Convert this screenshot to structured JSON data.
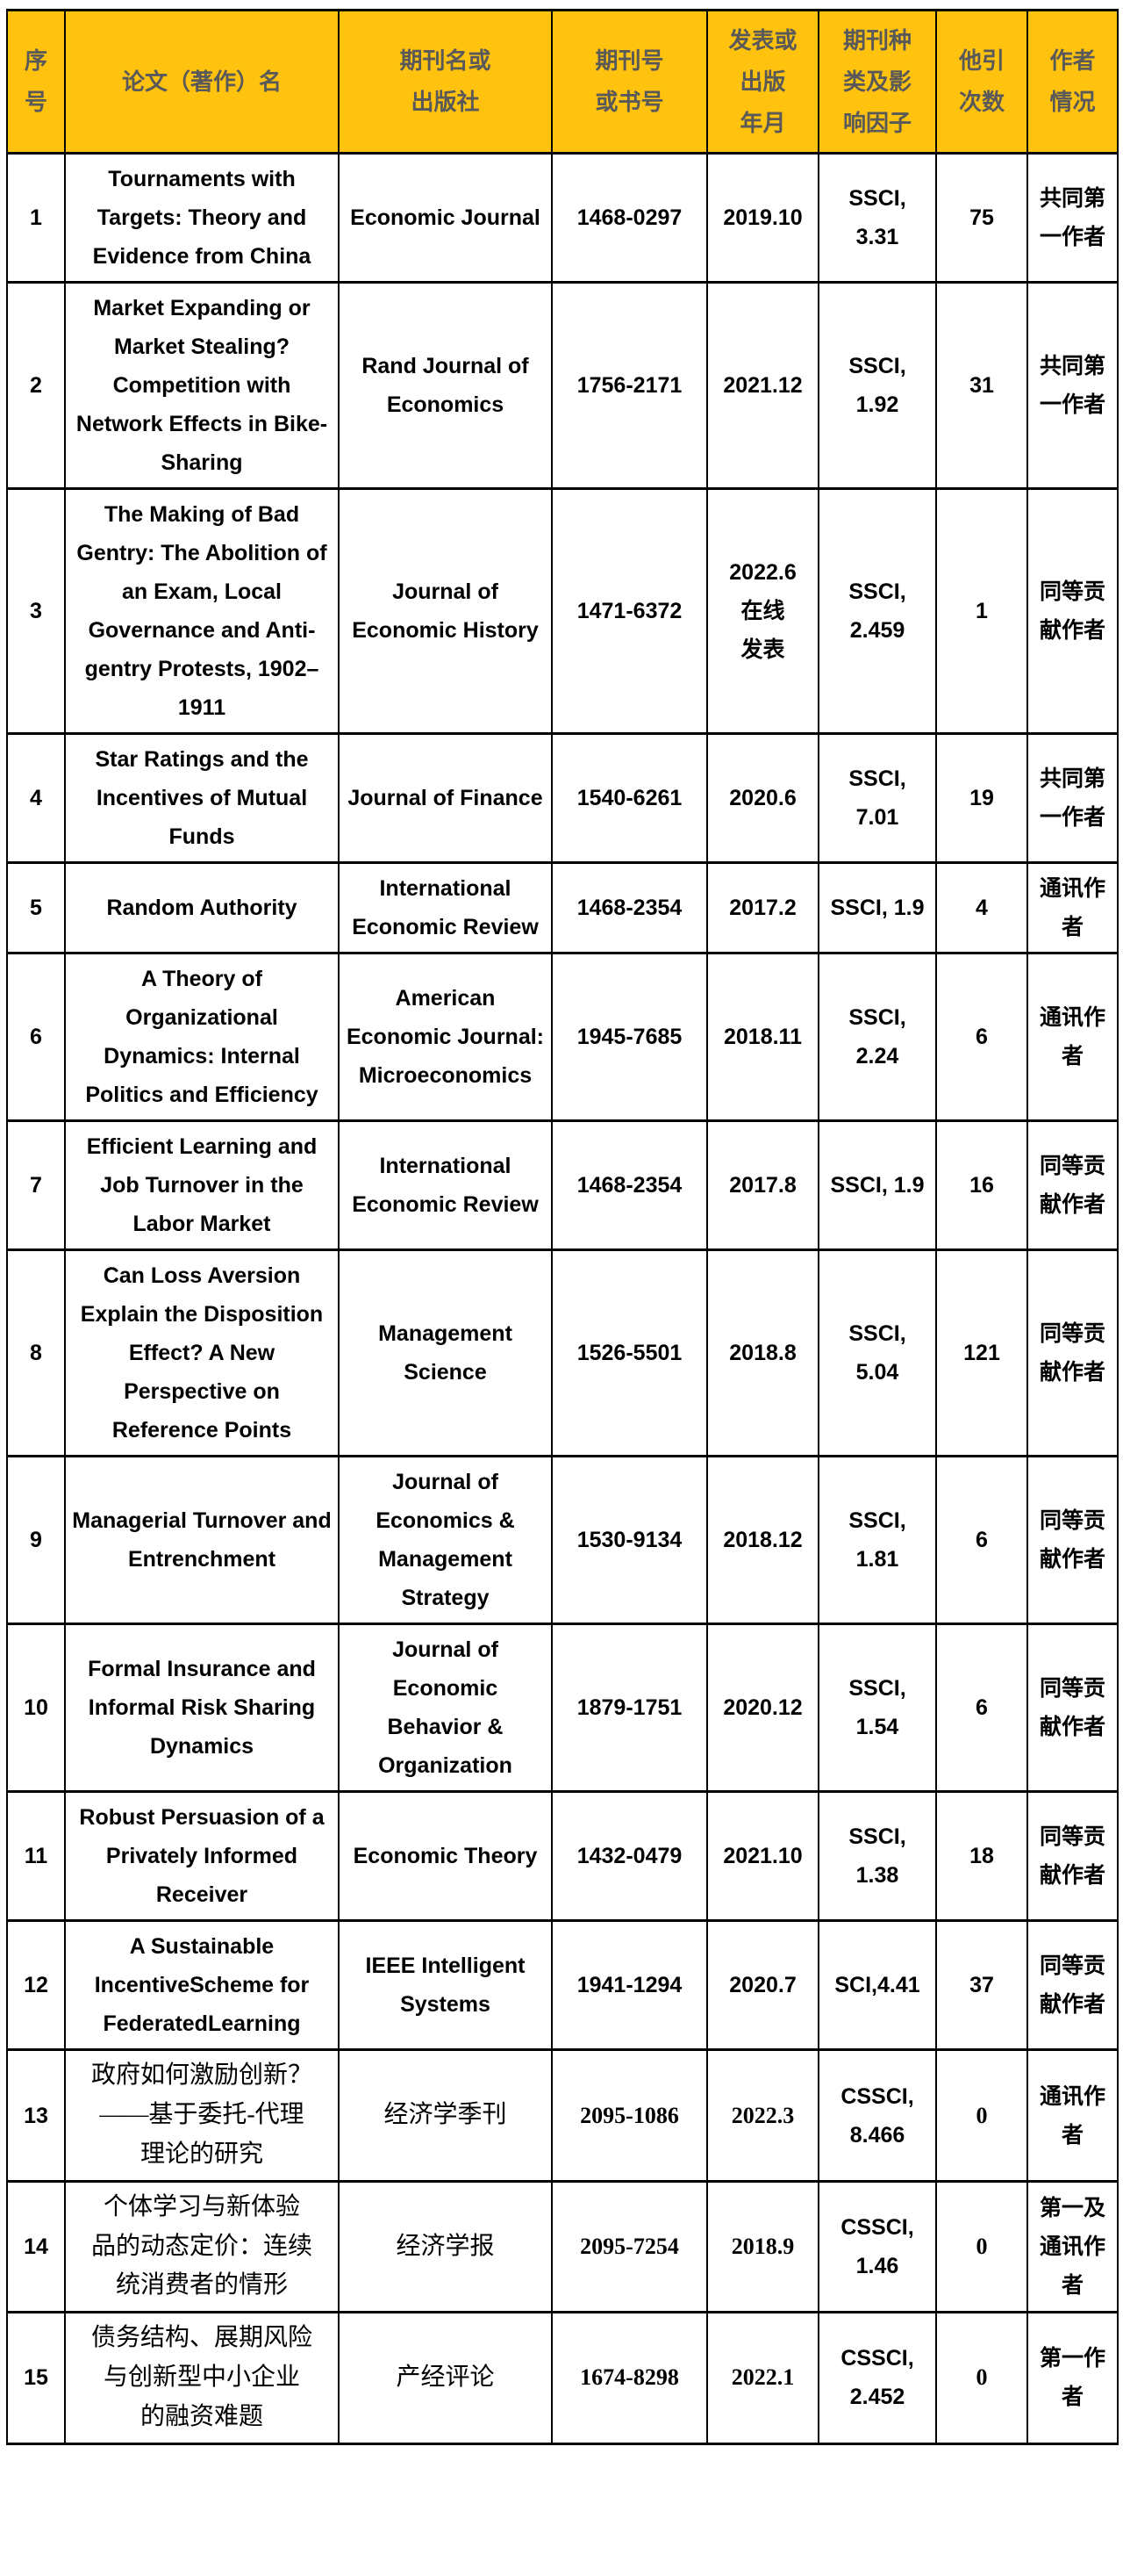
{
  "colors": {
    "header_bg": "#FFC20E",
    "header_text": "#595959",
    "border": "#000000",
    "body_text": "#000000"
  },
  "table": {
    "headers": [
      {
        "key": "no",
        "label": "序\n号"
      },
      {
        "key": "title",
        "label": "论文（著作）名"
      },
      {
        "key": "journal",
        "label": "期刊名或\n出版社"
      },
      {
        "key": "issn",
        "label": "期刊号\n或书号"
      },
      {
        "key": "date",
        "label": "发表或\n出版\n年月"
      },
      {
        "key": "index",
        "label": "期刊种\n类及影\n响因子"
      },
      {
        "key": "citations",
        "label": "他引\n次数"
      },
      {
        "key": "author",
        "label": "作者\n情况"
      }
    ],
    "rows": [
      {
        "no": "1",
        "title": "Tournaments with Targets: Theory and Evidence from China",
        "journal": "Economic Journal",
        "issn": "1468-0297",
        "date": "2019.10",
        "index": "SSCI, 3.31",
        "citations": "75",
        "author": "共同第一作者",
        "cn": false
      },
      {
        "no": "2",
        "title": "Market Expanding or Market Stealing? Competition with Network Effects in Bike-Sharing",
        "journal": "Rand Journal of Economics",
        "issn": "1756-2171",
        "date": "2021.12",
        "index": "SSCI, 1.92",
        "citations": "31",
        "author": "共同第一作者",
        "cn": false
      },
      {
        "no": "3",
        "title": "The Making of Bad Gentry: The Abolition of an Exam, Local Governance and Anti-gentry Protests, 1902–1911",
        "journal": "Journal of Economic History",
        "issn": "1471-6372",
        "date": "2022.6\n在线\n发表",
        "index": "SSCI, 2.459",
        "citations": "1",
        "author": "同等贡献作者",
        "cn": false
      },
      {
        "no": "4",
        "title": "Star Ratings and the Incentives of Mutual Funds",
        "journal": "Journal of Finance",
        "issn": "1540-6261",
        "date": "2020.6",
        "index": "SSCI, 7.01",
        "citations": "19",
        "author": "共同第一作者",
        "cn": false
      },
      {
        "no": "5",
        "title": "Random Authority",
        "journal": "International Economic Review",
        "issn": "1468-2354",
        "date": "2017.2",
        "index": "SSCI, 1.9",
        "citations": "4",
        "author": "通讯作者",
        "cn": false
      },
      {
        "no": "6",
        "title": "A Theory of Organizational Dynamics: Internal Politics and Efficiency",
        "journal": "American Economic Journal: Microeconomics",
        "issn": "1945-7685",
        "date": "2018.11",
        "index": "SSCI, 2.24",
        "citations": "6",
        "author": "通讯作者",
        "cn": false
      },
      {
        "no": "7",
        "title": "Efficient Learning and Job Turnover in the Labor Market",
        "journal": "International Economic Review",
        "issn": "1468-2354",
        "date": "2017.8",
        "index": "SSCI, 1.9",
        "citations": "16",
        "author": "同等贡献作者",
        "cn": false
      },
      {
        "no": "8",
        "title": "Can Loss Aversion Explain the Disposition Effect? A New Perspective on Reference Points",
        "journal": "Management Science",
        "issn": "1526-5501",
        "date": "2018.8",
        "index": "SSCI, 5.04",
        "citations": "121",
        "author": "同等贡献作者",
        "cn": false
      },
      {
        "no": "9",
        "title": "Managerial Turnover and Entrenchment",
        "journal": "Journal of Economics & Management Strategy",
        "issn": "1530-9134",
        "date": "2018.12",
        "index": "SSCI, 1.81",
        "citations": "6",
        "author": "同等贡献作者",
        "cn": false
      },
      {
        "no": "10",
        "title": "Formal Insurance and Informal Risk Sharing Dynamics",
        "journal": "Journal of Economic Behavior & Organization",
        "issn": "1879-1751",
        "date": "2020.12",
        "index": "SSCI, 1.54",
        "citations": "6",
        "author": "同等贡献作者",
        "cn": false
      },
      {
        "no": "11",
        "title": "Robust Persuasion of a Privately Informed Receiver",
        "journal": "Economic Theory",
        "issn": "1432-0479",
        "date": "2021.10",
        "index": "SSCI, 1.38",
        "citations": "18",
        "author": "同等贡献作者",
        "cn": false
      },
      {
        "no": "12",
        "title": "A Sustainable IncentiveScheme for FederatedLearning",
        "journal": "IEEE Intelligent Systems",
        "issn": "1941-1294",
        "date": "2020.7",
        "index": "SCI,4.41",
        "citations": "37",
        "author": "同等贡献作者",
        "cn": false
      },
      {
        "no": "13",
        "title": "政府如何激励创新？\n——基于委托-代理\n理论的研究",
        "journal": "经济学季刊",
        "issn": "2095-1086",
        "date": "2022.3",
        "index": "CSSCI, 8.466",
        "citations": "0",
        "author": "通讯作者",
        "cn": true
      },
      {
        "no": "14",
        "title": "个体学习与新体验\n品的动态定价：连续\n统消费者的情形",
        "journal": "经济学报",
        "issn": "2095-7254",
        "date": "2018.9",
        "index": "CSSCI, 1.46",
        "citations": "0",
        "author": "第一及通讯作者",
        "cn": true
      },
      {
        "no": "15",
        "title": "债务结构、展期风险\n与创新型中小企业\n的融资难题",
        "journal": "产经评论",
        "issn": "1674-8298",
        "date": "2022.1",
        "index": "CSSCI, 2.452",
        "citations": "0",
        "author": "第一作者",
        "cn": true
      }
    ]
  }
}
